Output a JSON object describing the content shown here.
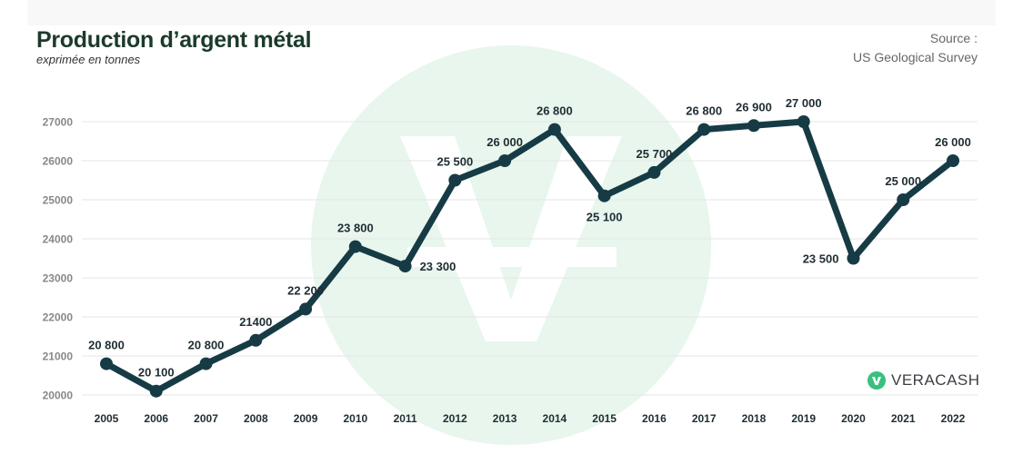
{
  "header": {
    "title": "Production d’argent métal",
    "subtitle": "exprimée en tonnes",
    "source_label": "Source :",
    "source_name": "US Geological Survey"
  },
  "brand": {
    "name": "VERACASH",
    "color": "#3bbf7e"
  },
  "colors": {
    "line": "#163b45",
    "grid": "#e5e5e5",
    "axis_text": "#888888",
    "label_text": "#1f2d33",
    "watermark": "#e8f6ee"
  },
  "chart_data": {
    "type": "line",
    "title": "Production d’argent métal",
    "subtitle": "exprimée en tonnes",
    "xlabel": "",
    "ylabel": "",
    "ylim": [
      20000,
      27000
    ],
    "yticks": [
      "20000",
      "21000",
      "22000",
      "23000",
      "24000",
      "25000",
      "26000",
      "27000"
    ],
    "grid": true,
    "x": [
      "2005",
      "2006",
      "2007",
      "2008",
      "2009",
      "2010",
      "2011",
      "2012",
      "2013",
      "2014",
      "2015",
      "2016",
      "2017",
      "2018",
      "2019",
      "2020",
      "2021",
      "2022"
    ],
    "series": [
      {
        "values": [
          20800,
          20100,
          20800,
          21400,
          22200,
          23800,
          23300,
          25500,
          26000,
          26800,
          25100,
          25700,
          26800,
          26900,
          27000,
          23500,
          25000,
          26000
        ],
        "labels": [
          "20 800",
          "20 100",
          "20 800",
          "21400",
          "22 200",
          "23 800",
          "23 300",
          "25 500",
          "26 000",
          "26 800",
          "25 100",
          "25 700",
          "26 800",
          "26 900",
          "27 000",
          "23 500",
          "25 000",
          "26 000"
        ],
        "label_positions": [
          "above",
          "above",
          "above",
          "above",
          "above",
          "above",
          "right",
          "above",
          "above",
          "above",
          "below",
          "above",
          "above",
          "above",
          "above",
          "left",
          "above",
          "above"
        ]
      }
    ]
  }
}
